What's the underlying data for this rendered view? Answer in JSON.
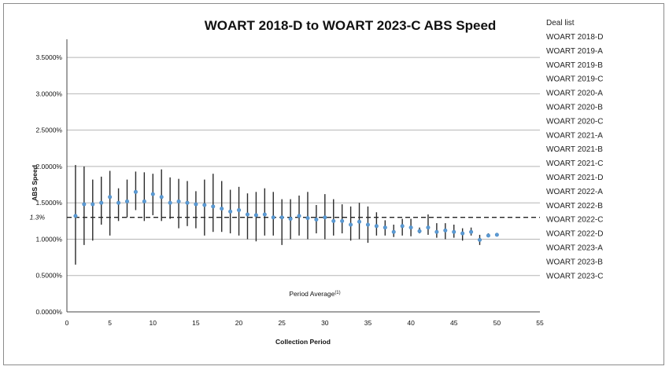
{
  "chart_data": {
    "type": "scatter",
    "title": "WOART 2018-D to WOART 2023-C ABS Speed",
    "xlabel": "Collection Period",
    "ylabel": "ABS Speed",
    "xlim": [
      0,
      55
    ],
    "ylim": [
      0,
      3.75
    ],
    "x_ticks": [
      0,
      5,
      10,
      15,
      20,
      25,
      30,
      35,
      40,
      45,
      50,
      55
    ],
    "y_ticks": [
      0,
      0.5,
      1.0,
      1.5,
      2.0,
      2.5,
      3.0,
      3.5
    ],
    "y_tick_labels": [
      "0.0000%",
      "0.5000%",
      "1.0000%",
      "1.5000%",
      "2.0000%",
      "2.5000%",
      "3.0000%",
      "3.5000%"
    ],
    "grid": "horizontal",
    "reference_line": {
      "value": 1.3,
      "label": "1.3%",
      "style": "dashed"
    },
    "series_note": "Period Average",
    "series_note_superscript": "(1)",
    "legend_title": "Deal list",
    "legend_position": "right",
    "legend": [
      "WOART 2018-D",
      "WOART 2019-A",
      "WOART 2019-B",
      "WOART 2019-C",
      "WOART 2020-A",
      "WOART 2020-B",
      "WOART 2020-C",
      "WOART 2021-A",
      "WOART 2021-B",
      "WOART 2021-C",
      "WOART 2021-D",
      "WOART 2022-A",
      "WOART 2022-B",
      "WOART 2022-C",
      "WOART 2022-D",
      "WOART 2023-A",
      "WOART 2023-B",
      "WOART 2023-C"
    ],
    "points": [
      {
        "x": 1,
        "y": 1.32,
        "low": 0.65,
        "high": 2.02
      },
      {
        "x": 2,
        "y": 1.48,
        "low": 0.92,
        "high": 2.0
      },
      {
        "x": 3,
        "y": 1.48,
        "low": 0.98,
        "high": 1.82
      },
      {
        "x": 4,
        "y": 1.5,
        "low": 1.2,
        "high": 1.86
      },
      {
        "x": 5,
        "y": 1.58,
        "low": 1.05,
        "high": 1.94
      },
      {
        "x": 6,
        "y": 1.5,
        "low": 1.25,
        "high": 1.7
      },
      {
        "x": 7,
        "y": 1.52,
        "low": 1.3,
        "high": 1.82
      },
      {
        "x": 8,
        "y": 1.65,
        "low": 1.4,
        "high": 1.93
      },
      {
        "x": 9,
        "y": 1.52,
        "low": 1.25,
        "high": 1.92
      },
      {
        "x": 10,
        "y": 1.62,
        "low": 1.33,
        "high": 1.9
      },
      {
        "x": 11,
        "y": 1.58,
        "low": 1.25,
        "high": 1.96
      },
      {
        "x": 12,
        "y": 1.5,
        "low": 1.28,
        "high": 1.85
      },
      {
        "x": 13,
        "y": 1.52,
        "low": 1.15,
        "high": 1.83
      },
      {
        "x": 14,
        "y": 1.5,
        "low": 1.18,
        "high": 1.8
      },
      {
        "x": 15,
        "y": 1.48,
        "low": 1.15,
        "high": 1.66
      },
      {
        "x": 16,
        "y": 1.47,
        "low": 1.05,
        "high": 1.82
      },
      {
        "x": 17,
        "y": 1.45,
        "low": 1.1,
        "high": 1.9
      },
      {
        "x": 18,
        "y": 1.42,
        "low": 1.1,
        "high": 1.8
      },
      {
        "x": 19,
        "y": 1.38,
        "low": 1.08,
        "high": 1.68
      },
      {
        "x": 20,
        "y": 1.4,
        "low": 1.05,
        "high": 1.72
      },
      {
        "x": 21,
        "y": 1.34,
        "low": 1.0,
        "high": 1.63
      },
      {
        "x": 22,
        "y": 1.33,
        "low": 0.97,
        "high": 1.65
      },
      {
        "x": 23,
        "y": 1.34,
        "low": 1.05,
        "high": 1.7
      },
      {
        "x": 24,
        "y": 1.3,
        "low": 1.05,
        "high": 1.65
      },
      {
        "x": 25,
        "y": 1.3,
        "low": 0.92,
        "high": 1.55
      },
      {
        "x": 26,
        "y": 1.28,
        "low": 1.0,
        "high": 1.55
      },
      {
        "x": 27,
        "y": 1.32,
        "low": 1.05,
        "high": 1.6
      },
      {
        "x": 28,
        "y": 1.29,
        "low": 1.0,
        "high": 1.65
      },
      {
        "x": 29,
        "y": 1.27,
        "low": 1.08,
        "high": 1.47
      },
      {
        "x": 30,
        "y": 1.3,
        "low": 1.0,
        "high": 1.62
      },
      {
        "x": 31,
        "y": 1.25,
        "low": 1.05,
        "high": 1.55
      },
      {
        "x": 32,
        "y": 1.25,
        "low": 1.08,
        "high": 1.48
      },
      {
        "x": 33,
        "y": 1.2,
        "low": 0.98,
        "high": 1.45
      },
      {
        "x": 34,
        "y": 1.24,
        "low": 1.0,
        "high": 1.5
      },
      {
        "x": 35,
        "y": 1.2,
        "low": 0.95,
        "high": 1.45
      },
      {
        "x": 36,
        "y": 1.18,
        "low": 1.05,
        "high": 1.37
      },
      {
        "x": 37,
        "y": 1.16,
        "low": 1.05,
        "high": 1.26
      },
      {
        "x": 38,
        "y": 1.1,
        "low": 1.03,
        "high": 1.2
      },
      {
        "x": 39,
        "y": 1.18,
        "low": 1.05,
        "high": 1.28
      },
      {
        "x": 40,
        "y": 1.16,
        "low": 1.04,
        "high": 1.28
      },
      {
        "x": 41,
        "y": 1.11,
        "low": 1.08,
        "high": 1.16
      },
      {
        "x": 42,
        "y": 1.16,
        "low": 1.06,
        "high": 1.34
      },
      {
        "x": 43,
        "y": 1.1,
        "low": 1.02,
        "high": 1.22
      },
      {
        "x": 44,
        "y": 1.12,
        "low": 1.0,
        "high": 1.22
      },
      {
        "x": 45,
        "y": 1.1,
        "low": 1.02,
        "high": 1.2
      },
      {
        "x": 46,
        "y": 1.08,
        "low": 0.98,
        "high": 1.15
      },
      {
        "x": 47,
        "y": 1.1,
        "low": 1.05,
        "high": 1.16
      },
      {
        "x": 48,
        "y": 0.99,
        "low": 0.92,
        "high": 1.06
      },
      {
        "x": 49,
        "y": 1.05,
        "low": 1.03,
        "high": 1.08
      },
      {
        "x": 50,
        "y": 1.06,
        "low": 1.04,
        "high": 1.08
      }
    ]
  }
}
